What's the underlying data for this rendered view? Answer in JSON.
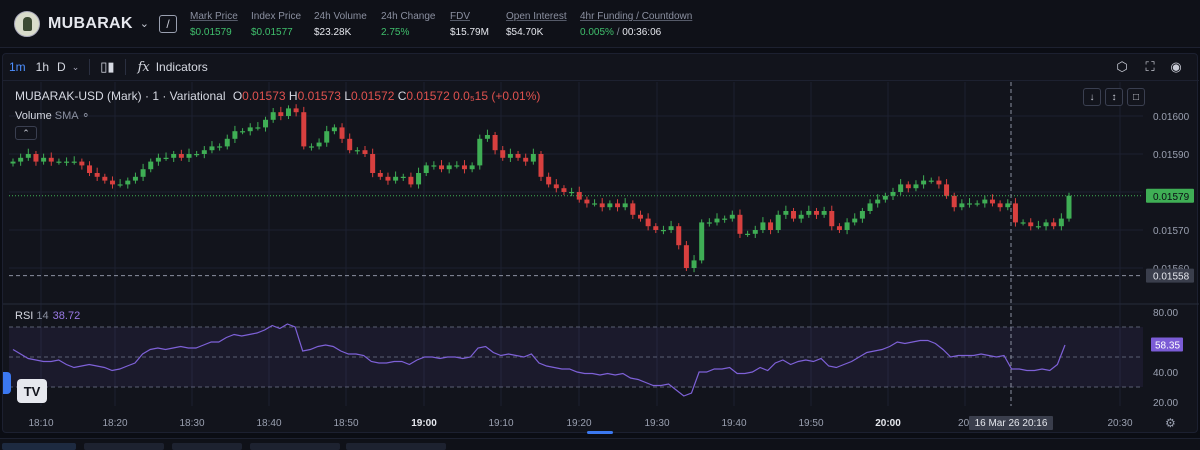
{
  "header": {
    "symbol": "MUBARAK",
    "stats": [
      {
        "label": "Mark Price",
        "value": "$0.01579",
        "green": true,
        "underline": true
      },
      {
        "label": "Index Price",
        "value": "$0.01577",
        "green": true,
        "underline": false
      },
      {
        "label": "24h Volume",
        "value": "$23.28K",
        "green": false,
        "underline": false
      },
      {
        "label": "24h Change",
        "value": "2.75%",
        "green": true,
        "underline": false
      },
      {
        "label": "FDV",
        "value": "$15.79M",
        "green": false,
        "underline": true
      },
      {
        "label": "Open Interest",
        "value": "$54.70K",
        "green": false,
        "underline": true
      }
    ],
    "funding": {
      "label": "4hr Funding / Countdown",
      "rate": "0.005%",
      "sep": "/",
      "countdown": "00:36:06"
    }
  },
  "toolbar": {
    "tf_1m": "1m",
    "tf_1h": "1h",
    "tf_d": "D",
    "indicators": "Indicators",
    "fx": "fx"
  },
  "legend": {
    "title": "MUBARAK-USD (Mark) · 1 · Variational",
    "o_label": "O",
    "o": "0.01573",
    "h_label": "H",
    "h": "0.01573",
    "l_label": "L",
    "l": "0.01572",
    "c_label": "C",
    "c": "0.01572",
    "change": "0.0₅15 (+0.01%)"
  },
  "volume": {
    "label": "Volume",
    "sma": "SMA"
  },
  "rsi": {
    "label": "RSI",
    "period": "14",
    "value": "38.72"
  },
  "icons": {
    "settings": "gear-icon",
    "fullscreen": "fullscreen-icon",
    "screenshot": "camera-icon"
  },
  "chart_data": {
    "type": "candlestick",
    "price_axis": [
      "0.01600",
      "0.01590",
      "0.01580",
      "0.01570",
      "0.01560"
    ],
    "price_last": "0.01579",
    "price_cross": "0.01558",
    "rsi_axis": [
      "80.00",
      "60.00",
      "40.00",
      "20.00"
    ],
    "rsi_last": "58.35",
    "time_axis": [
      "18:10",
      "18:20",
      "18:30",
      "18:40",
      "18:50",
      "19:00",
      "19:10",
      "19:20",
      "19:30",
      "19:40",
      "19:50",
      "20:00",
      "20:",
      "20:30"
    ],
    "time_bold": [
      "19:00",
      "20:00"
    ],
    "crosshair_time": "16 Mar 26  20:16",
    "close": [
      0.01588,
      0.01589,
      0.0159,
      0.01588,
      0.01589,
      0.01588,
      0.01588,
      0.01588,
      0.01588,
      0.01587,
      0.01585,
      0.01584,
      0.01583,
      0.01582,
      0.01582,
      0.01583,
      0.01584,
      0.01586,
      0.01588,
      0.01589,
      0.01589,
      0.0159,
      0.01589,
      0.0159,
      0.0159,
      0.01591,
      0.01592,
      0.01592,
      0.01594,
      0.01596,
      0.01596,
      0.01597,
      0.01597,
      0.01599,
      0.01601,
      0.016,
      0.01602,
      0.01601,
      0.01592,
      0.01592,
      0.01593,
      0.01596,
      0.01597,
      0.01594,
      0.01591,
      0.01591,
      0.0159,
      0.01585,
      0.01584,
      0.01583,
      0.01584,
      0.01584,
      0.01582,
      0.01585,
      0.01587,
      0.01587,
      0.01586,
      0.01587,
      0.01587,
      0.01586,
      0.01587,
      0.01594,
      0.01595,
      0.01591,
      0.01589,
      0.0159,
      0.01589,
      0.01588,
      0.0159,
      0.01584,
      0.01582,
      0.01581,
      0.0158,
      0.0158,
      0.01578,
      0.01577,
      0.01577,
      0.01576,
      0.01577,
      0.01576,
      0.01577,
      0.01574,
      0.01573,
      0.01571,
      0.0157,
      0.0157,
      0.01571,
      0.01566,
      0.0156,
      0.01562,
      0.01572,
      0.01572,
      0.01573,
      0.01573,
      0.01574,
      0.01569,
      0.01569,
      0.0157,
      0.01572,
      0.0157,
      0.01574,
      0.01575,
      0.01573,
      0.01574,
      0.01575,
      0.01574,
      0.01575,
      0.01571,
      0.0157,
      0.01572,
      0.01573,
      0.01575,
      0.01577,
      0.01578,
      0.01579,
      0.0158,
      0.01582,
      0.01581,
      0.01582,
      0.01583,
      0.01583,
      0.01582,
      0.01579,
      0.01576,
      0.01577,
      0.01577,
      0.01577,
      0.01578,
      0.01577,
      0.01576,
      0.01577,
      0.01572,
      0.01572,
      0.01571,
      0.01571,
      0.01572,
      0.01571,
      0.01573,
      0.01579
    ],
    "rsi": [
      55,
      52,
      49,
      48,
      47,
      47,
      48,
      45,
      43,
      44,
      45,
      44,
      43,
      41,
      42,
      44,
      46,
      52,
      55,
      56,
      55,
      56,
      57,
      56,
      56,
      58,
      60,
      60,
      63,
      65,
      64,
      65,
      66,
      68,
      71,
      69,
      72,
      70,
      54,
      55,
      57,
      58,
      57,
      54,
      52,
      52,
      51,
      47,
      46,
      46,
      47,
      47,
      45,
      48,
      50,
      50,
      49,
      50,
      50,
      49,
      50,
      56,
      57,
      53,
      51,
      52,
      51,
      50,
      52,
      46,
      44,
      43,
      42,
      42,
      40,
      39,
      39,
      38,
      39,
      38,
      39,
      36,
      35,
      33,
      31,
      31,
      32,
      28,
      24,
      26,
      40,
      40,
      42,
      42,
      43,
      39,
      39,
      40,
      43,
      41,
      46,
      48,
      45,
      47,
      48,
      47,
      49,
      44,
      43,
      45,
      47,
      50,
      53,
      54,
      55,
      57,
      60,
      59,
      60,
      61,
      61,
      59,
      55,
      50,
      51,
      51,
      51,
      52,
      51,
      50,
      51,
      42,
      42,
      41,
      41,
      42,
      41,
      45,
      58
    ]
  }
}
